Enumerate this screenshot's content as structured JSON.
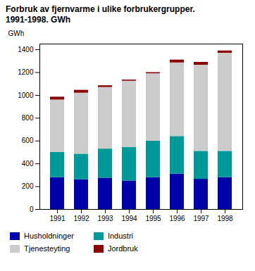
{
  "chart_data": {
    "type": "bar",
    "stacked": true,
    "title": "Forbruk av fjernvarme i ulike forbrukergrupper.",
    "subtitle": "1991-1998. GWh",
    "y_label": "GWh",
    "categories": [
      "1991",
      "1992",
      "1993",
      "1994",
      "1995",
      "1996",
      "1997",
      "1998"
    ],
    "series": [
      {
        "name": "Husholdninger",
        "color": "#0000AA",
        "values": [
          280,
          260,
          275,
          250,
          280,
          310,
          265,
          280
        ]
      },
      {
        "name": "Industri",
        "color": "#009999",
        "values": [
          220,
          225,
          255,
          295,
          320,
          330,
          245,
          230
        ]
      },
      {
        "name": "Tjenesteyting",
        "color": "#CCCCCC",
        "values": [
          460,
          535,
          540,
          580,
          590,
          645,
          755,
          860
        ]
      },
      {
        "name": "Jordbruk",
        "color": "#8B0000",
        "values": [
          25,
          25,
          15,
          10,
          10,
          25,
          25,
          20
        ]
      }
    ],
    "ylim": [
      0,
      1450
    ],
    "yticks": [
      0,
      200,
      400,
      600,
      800,
      1000,
      1200,
      1400
    ],
    "grid": false,
    "legend": "bottom"
  }
}
